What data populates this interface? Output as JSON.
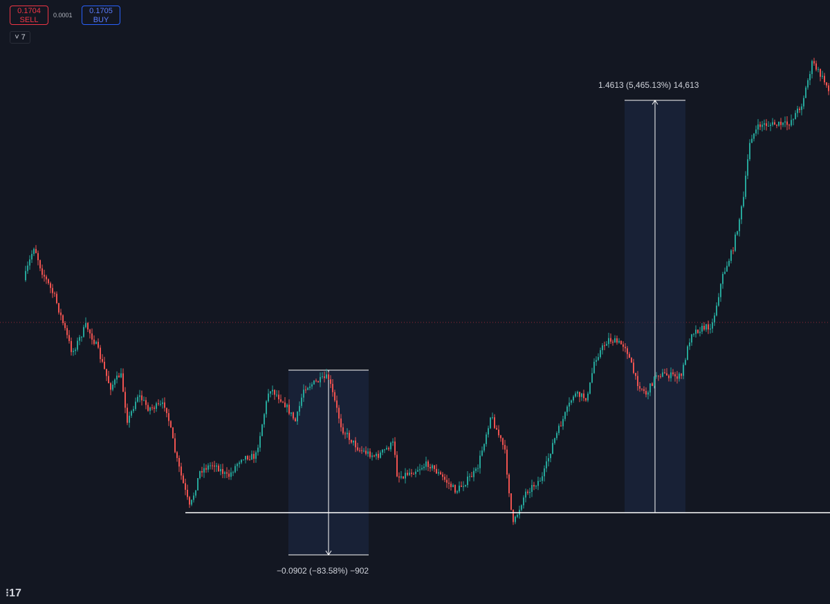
{
  "order_panel": {
    "sell_price": "0.1704",
    "sell_label": "SELL",
    "spread": "0.0001",
    "buy_price": "0.1705",
    "buy_label": "BUY",
    "collapse_count": "7"
  },
  "measurements": {
    "rise_label": "1.4613 (5,465.13%) 14,613",
    "drop_label": "−0.0902 (−83.58%) −902"
  }
}
